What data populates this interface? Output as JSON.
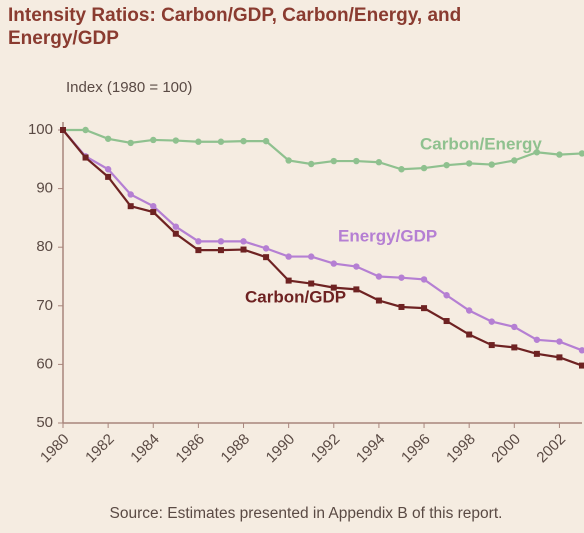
{
  "chart_data": {
    "type": "line",
    "title": "Intensity Ratios: Carbon/GDP, Carbon/Energy, and Energy/GDP",
    "y_label": "Index (1980 = 100)",
    "source": "Source: Estimates presented in Appendix B of this report.",
    "x": [
      1980,
      1981,
      1982,
      1983,
      1984,
      1985,
      1986,
      1987,
      1988,
      1989,
      1990,
      1991,
      1992,
      1993,
      1994,
      1995,
      1996,
      1997,
      1998,
      1999,
      2000,
      2001,
      2002,
      2003
    ],
    "series": [
      {
        "name": "Carbon/Energy",
        "color": "#8fc18f",
        "values": [
          100,
          100,
          98.5,
          97.8,
          98.3,
          98.2,
          98.0,
          98.0,
          98.1,
          98.1,
          94.8,
          94.2,
          94.7,
          94.7,
          94.5,
          93.3,
          93.5,
          94.0,
          94.3,
          94.1,
          94.8,
          96.2,
          95.8,
          96.0
        ]
      },
      {
        "name": "Energy/GDP",
        "color": "#b57fd3",
        "values": [
          100,
          95.5,
          93.3,
          89,
          87,
          83.5,
          81,
          81,
          81,
          79.8,
          78.4,
          78.4,
          77.2,
          76.7,
          75,
          74.8,
          74.5,
          71.8,
          69.2,
          67.3,
          66.4,
          64.2,
          63.9,
          62.4
        ]
      },
      {
        "name": "Carbon/GDP",
        "color": "#6e2222",
        "values": [
          100,
          95.3,
          92,
          87,
          86,
          82.3,
          79.5,
          79.5,
          79.6,
          78.3,
          74.3,
          73.8,
          73.1,
          72.8,
          70.9,
          69.8,
          69.6,
          67.4,
          65.1,
          63.3,
          62.9,
          61.8,
          61.2,
          59.8
        ]
      }
    ],
    "xlim": [
      1980,
      2003
    ],
    "xticks": [
      1980,
      1982,
      1984,
      1986,
      1988,
      1990,
      1992,
      1994,
      1996,
      1998,
      2000,
      2002
    ],
    "ylim": [
      50,
      100
    ],
    "yticks": [
      50,
      60,
      70,
      80,
      90,
      100
    ],
    "grid": false
  }
}
